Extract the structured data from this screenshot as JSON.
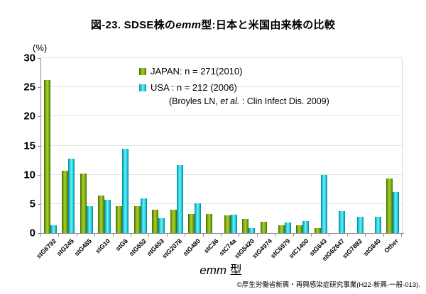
{
  "title": {
    "prefix": "図-23. SDSE株の",
    "italic": "emm",
    "suffix": "型:日本と米国由来株の比較"
  },
  "y_axis": {
    "unit": "(%)",
    "ticks": [
      0,
      5,
      10,
      15,
      20,
      25,
      30
    ],
    "max": 30
  },
  "x_axis": {
    "title_italic": "emm",
    "title_suffix": " 型"
  },
  "legend": {
    "japan_label": "JAPAN: n = 271(2010)",
    "usa_label": "USA : n = 212 (2006)",
    "citation_prefix": "(Broyles LN, ",
    "citation_italic": "et al.",
    "citation_suffix": " : Clin Infect Dis. 2009)"
  },
  "footer": "©厚生労働省新興・再興感染症研究事業(H22-新興-一般-013).",
  "colors": {
    "japan": "#76a80d",
    "usa": "#1ecfdd",
    "grid": "#e3e3e3",
    "axis": "#8f8f8f"
  },
  "chart_data": {
    "type": "bar",
    "title": "図-23. SDSE株のemm型:日本と米国由来株の比較",
    "xlabel": "emm 型",
    "ylabel": "(%)",
    "ylim": [
      0,
      30
    ],
    "grid": true,
    "legend_position": "top-center",
    "categories": [
      "stG6792",
      "stG245",
      "stG485",
      "stG10",
      "stG6",
      "stG652",
      "stG653",
      "stG2078",
      "stG480",
      "stC36",
      "stC74a",
      "stG5420",
      "stG4974",
      "stC6979",
      "stC1400",
      "stG643",
      "stG62647",
      "stG7882",
      "stG840",
      "Other"
    ],
    "series": [
      {
        "name": "JAPAN",
        "n": "271",
        "year": "2010",
        "color": "#76a80d",
        "values": [
          26.2,
          10.7,
          10.2,
          6.4,
          4.6,
          4.6,
          4.0,
          4.0,
          3.3,
          3.3,
          3.0,
          2.4,
          2.0,
          1.3,
          1.4,
          0.9,
          0,
          0,
          0,
          9.4
        ]
      },
      {
        "name": "USA",
        "n": "212",
        "year": "2006",
        "color": "#1ecfdd",
        "values": [
          1.3,
          12.7,
          4.6,
          5.7,
          14.5,
          5.9,
          2.5,
          11.7,
          5.1,
          0,
          3.2,
          0.9,
          0,
          1.8,
          2.1,
          10.0,
          3.8,
          2.8,
          2.8,
          7.0
        ]
      }
    ]
  }
}
